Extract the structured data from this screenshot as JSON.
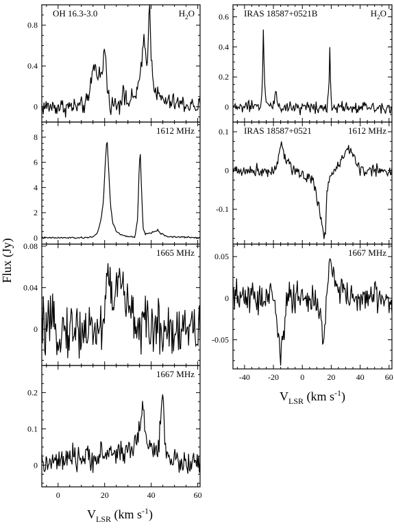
{
  "figure": {
    "ylabel": "Flux (Jy)",
    "xlabel_left": {
      "main": "V",
      "sub": "LSR",
      "unit_open": " (km s",
      "unit_sup": "-1",
      "unit_close": ")"
    },
    "xlabel_right": {
      "main": "V",
      "sub": "LSR",
      "unit_open": " (km s",
      "unit_sup": "-1",
      "unit_close": ")"
    }
  },
  "chart_data": [
    {
      "type": "line",
      "column": "left",
      "panel": 1,
      "source_label": "OH 16.3-3.0",
      "line_label": "H2O",
      "xlim": [
        -7,
        61
      ],
      "ylim": [
        -0.15,
        1.0
      ],
      "xticks": [
        0,
        20,
        40,
        60
      ],
      "yticks": [
        0,
        0.4,
        0.8
      ],
      "yticklabels": [
        "0",
        "0.4",
        "0.8"
      ],
      "x": [
        -7,
        10,
        13,
        15,
        17,
        18,
        19,
        19.8,
        20.3,
        21,
        22,
        24,
        26,
        27.5,
        28,
        28.6,
        30,
        33,
        35,
        36,
        36.8,
        37.3,
        38,
        38.6,
        39,
        39.4,
        40,
        40.6,
        41.5,
        43,
        46,
        61
      ],
      "y": [
        0,
        0,
        0.05,
        0.4,
        0.35,
        0.32,
        0.3,
        0.55,
        0.58,
        0.2,
        0.05,
        0.02,
        0.03,
        0.08,
        0.3,
        0.06,
        0.04,
        0.1,
        0.25,
        0.4,
        0.7,
        0.6,
        0.4,
        0.6,
        0.9,
        0.94,
        0.5,
        0.35,
        0.18,
        0.1,
        0.05,
        0
      ],
      "noise": 0.045
    },
    {
      "type": "line",
      "column": "left",
      "panel": 2,
      "source_label": "",
      "line_label": "1612 MHz",
      "xlim": [
        -7,
        61
      ],
      "ylim": [
        -0.5,
        9.2
      ],
      "xticks": [
        0,
        20,
        40,
        60
      ],
      "yticks": [
        0,
        2,
        4,
        6,
        8
      ],
      "yticklabels": [
        "0",
        "2",
        "4",
        "6",
        "8"
      ],
      "x": [
        -7,
        12,
        15,
        17,
        18.5,
        19.5,
        20.3,
        21,
        21.7,
        22.5,
        23.5,
        25,
        27,
        30,
        33,
        34.2,
        34.8,
        35.3,
        35.8,
        36.5,
        37.5,
        40,
        42,
        43,
        44,
        47,
        61
      ],
      "y": [
        0,
        0,
        0.1,
        0.4,
        1.5,
        3.0,
        6.0,
        8.0,
        5.5,
        2.6,
        1.2,
        0.5,
        0.25,
        0.1,
        0.05,
        1.5,
        5.5,
        6.9,
        4.0,
        0.8,
        0.3,
        0.4,
        0.55,
        0.6,
        0.35,
        0.1,
        0
      ],
      "noise": 0.03
    },
    {
      "type": "line",
      "column": "left",
      "panel": 3,
      "source_label": "",
      "line_label": "1665 MHz",
      "xlim": [
        -7,
        61
      ],
      "ylim": [
        -0.035,
        0.082
      ],
      "xticks": [
        0,
        20,
        40,
        60
      ],
      "yticks": [
        0,
        0.04,
        0.08
      ],
      "yticklabels": [
        "0",
        "0.04",
        "0.08"
      ],
      "x": [
        -7,
        18,
        20,
        20.8,
        21.5,
        22.5,
        24,
        26,
        28,
        30,
        32,
        35,
        38,
        61
      ],
      "y": [
        0,
        0,
        0.01,
        0.06,
        0.055,
        0.035,
        0.03,
        0.045,
        0.04,
        0.02,
        0.01,
        0.005,
        0.002,
        0
      ],
      "noise": 0.013
    },
    {
      "type": "line",
      "column": "left",
      "panel": 4,
      "source_label": "",
      "line_label": "1667 MHz",
      "xlim": [
        -7,
        61
      ],
      "ylim": [
        -0.06,
        0.275
      ],
      "xticks": [
        0,
        20,
        40,
        60
      ],
      "yticks": [
        0,
        0.1,
        0.2
      ],
      "yticklabels": [
        "0",
        "0.1",
        "0.2"
      ],
      "x": [
        -7,
        10,
        15,
        20,
        25,
        30,
        34,
        35.5,
        36.3,
        37,
        38,
        40,
        43,
        44.2,
        45,
        45.8,
        47,
        50,
        61
      ],
      "y": [
        0,
        0.02,
        0.02,
        0.03,
        0.035,
        0.04,
        0.06,
        0.12,
        0.2,
        0.12,
        0.06,
        0.04,
        0.05,
        0.12,
        0.22,
        0.08,
        0.03,
        0.01,
        0
      ],
      "noise": 0.017
    },
    {
      "type": "line",
      "column": "right",
      "panel": 1,
      "source_label": "IRAS 18587+0521B",
      "line_label": "H2O",
      "xlim": [
        -48,
        62
      ],
      "ylim": [
        -0.1,
        0.68
      ],
      "xticks": [
        -40,
        -20,
        0,
        20,
        40,
        60
      ],
      "yticks": [
        0,
        0.2,
        0.4,
        0.6
      ],
      "yticklabels": [
        "0",
        "0.2",
        "0.4",
        "0.6"
      ],
      "x": [
        -48,
        -29,
        -27.7,
        -27,
        -26.4,
        -25.5,
        -24,
        -20,
        -18.5,
        -17,
        -15,
        17,
        18.3,
        19,
        19.6,
        20.5,
        62
      ],
      "y": [
        0,
        0,
        0.15,
        0.53,
        0.25,
        0.05,
        0.02,
        0.0,
        0.12,
        0.02,
        0.0,
        0.0,
        0.1,
        0.4,
        0.15,
        0.0,
        0
      ],
      "noise": 0.02
    },
    {
      "type": "line",
      "column": "right",
      "panel": 2,
      "source_label": "IRAS 18587+0521",
      "line_label": "1612 MHz",
      "xlim": [
        -48,
        62
      ],
      "ylim": [
        -0.19,
        0.125
      ],
      "xticks": [
        -40,
        -20,
        0,
        20,
        40,
        60
      ],
      "yticks": [
        -0.1,
        0,
        0.1
      ],
      "yticklabels": [
        "-0.1",
        "0",
        "0.1"
      ],
      "x": [
        -48,
        -20,
        -17,
        -15,
        -13,
        -10,
        -5,
        0,
        3,
        5,
        8,
        10,
        12,
        14,
        15,
        16,
        17,
        18,
        20,
        22,
        25,
        28,
        30,
        33,
        35,
        38,
        40,
        62
      ],
      "y": [
        0,
        0,
        0.03,
        0.07,
        0.04,
        0.02,
        0.0,
        -0.01,
        -0.02,
        -0.01,
        -0.03,
        -0.08,
        -0.1,
        -0.14,
        -0.17,
        -0.15,
        -0.06,
        -0.03,
        -0.01,
        0.0,
        0.01,
        0.03,
        0.05,
        0.06,
        0.04,
        0.02,
        0.0,
        0
      ],
      "noise": 0.008
    },
    {
      "type": "line",
      "column": "right",
      "panel": 3,
      "source_label": "",
      "line_label": "1667 MHz",
      "xlim": [
        -48,
        62
      ],
      "ylim": [
        -0.085,
        0.065
      ],
      "xticks": [
        -40,
        -20,
        0,
        20,
        40,
        60
      ],
      "yticks": [
        -0.05,
        0,
        0.05
      ],
      "yticklabels": [
        "-0.05",
        "0",
        "0.05"
      ],
      "x": [
        -48,
        -20,
        -18,
        -16,
        -15,
        -14,
        -12,
        -10,
        5,
        10,
        13,
        14.5,
        15.5,
        17,
        18,
        20,
        22,
        25,
        30,
        35,
        62
      ],
      "y": [
        0,
        0,
        -0.02,
        -0.05,
        -0.07,
        -0.05,
        -0.02,
        0,
        0,
        -0.01,
        -0.03,
        -0.055,
        -0.04,
        0.01,
        0.03,
        0.035,
        0.03,
        0.015,
        0.005,
        0,
        0
      ],
      "noise": 0.01
    }
  ],
  "colors": {
    "line": "#000000",
    "frame": "#000000",
    "background": "#ffffff"
  }
}
